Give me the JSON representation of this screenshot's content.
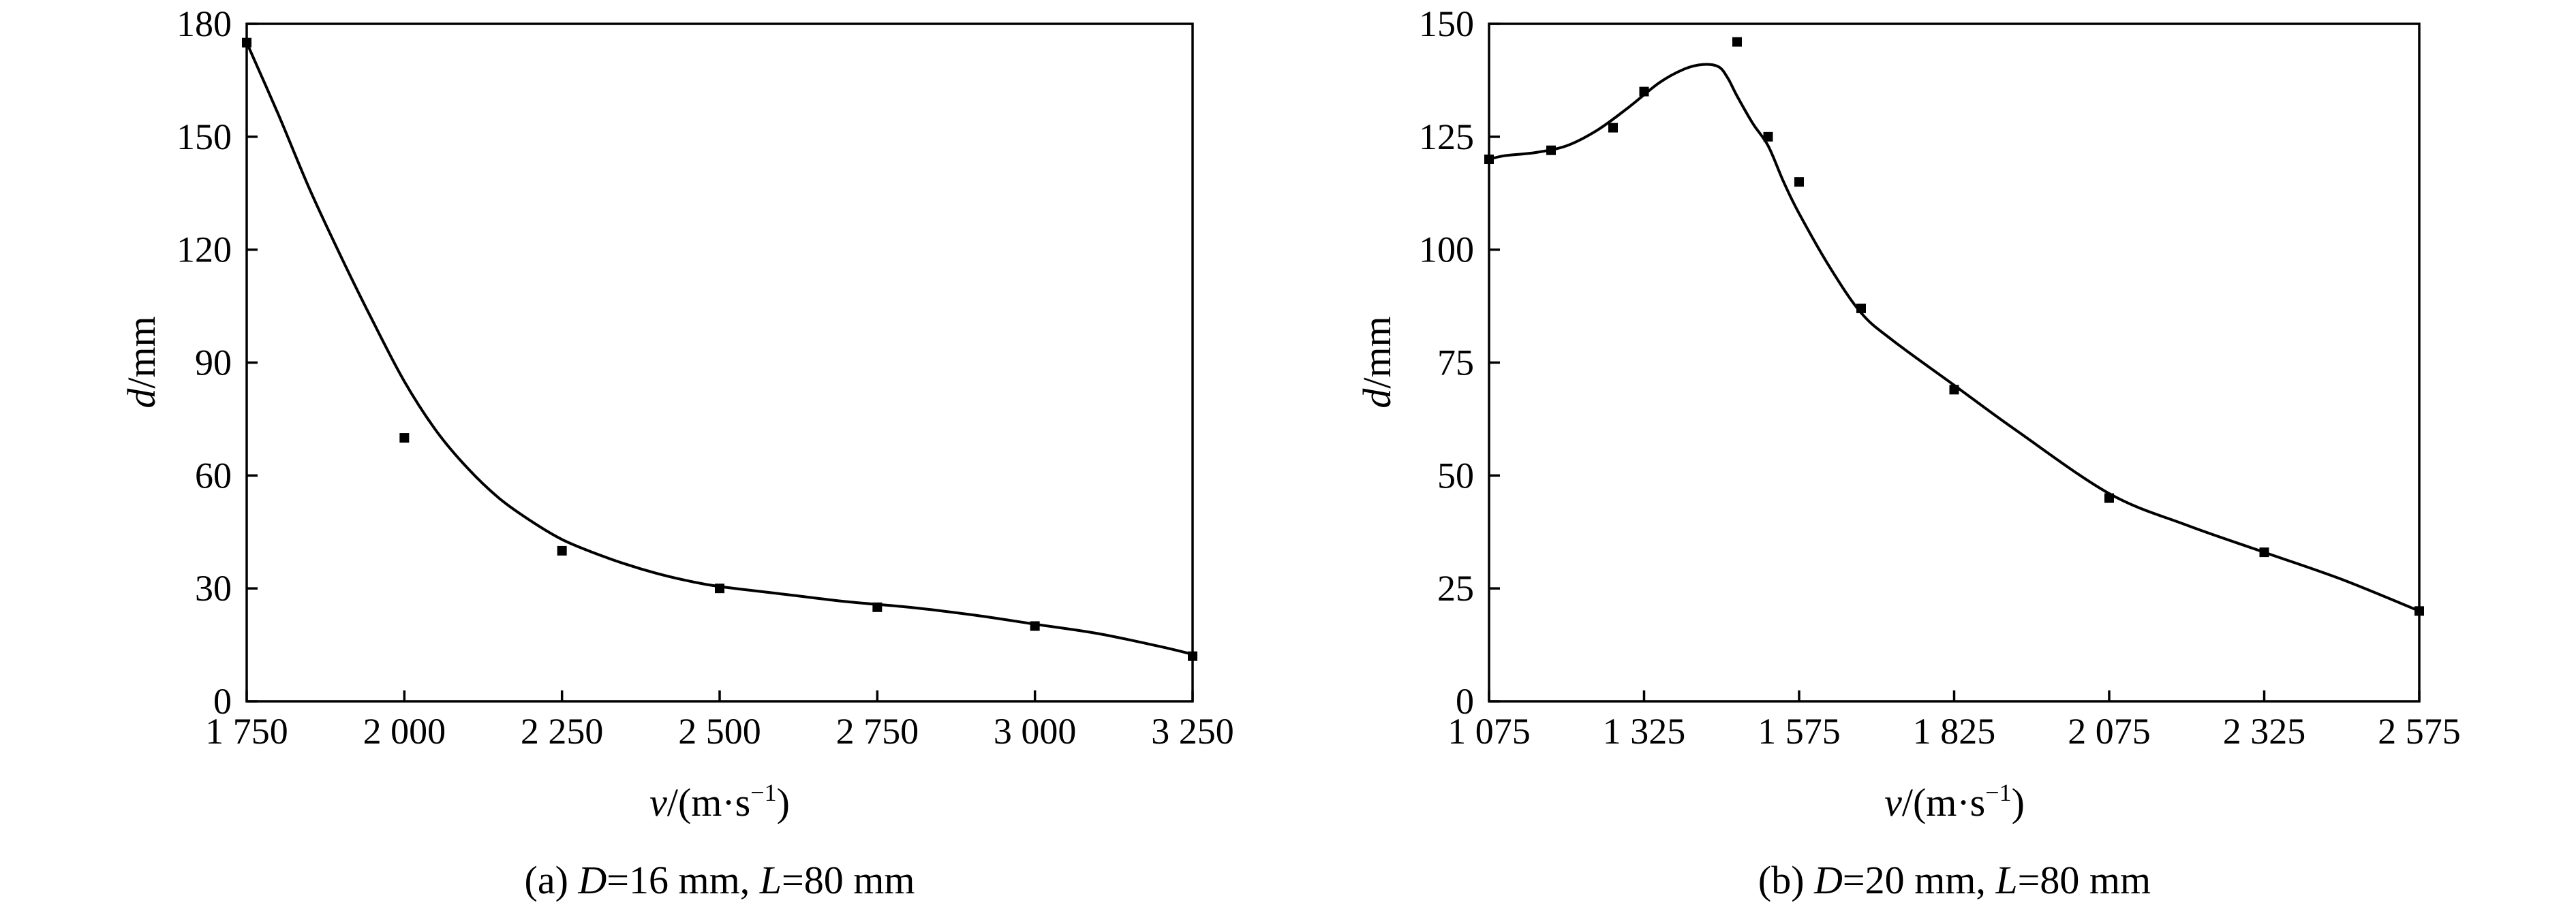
{
  "chart_data": [
    {
      "type": "scatter",
      "caption": {
        "prefix": "(a) ",
        "v1": "D",
        "t1": "=16 mm, ",
        "v2": "L",
        "t2": "=80 mm"
      },
      "xlabel": {
        "var": "v",
        "unit": "/(m·s",
        "sup": "−1",
        "close": ")"
      },
      "ylabel": {
        "var": "d",
        "unit": "/mm"
      },
      "xlim": [
        1750,
        3250
      ],
      "ylim": [
        0,
        180
      ],
      "xticks": [
        1750,
        2000,
        2250,
        2500,
        2750,
        3000,
        3250
      ],
      "xtick_labels": [
        "1 750",
        "2 000",
        "2 250",
        "2 500",
        "2 750",
        "3 000",
        "3 250"
      ],
      "yticks": [
        0,
        30,
        60,
        90,
        120,
        150,
        180
      ],
      "ytick_labels": [
        "0",
        "30",
        "60",
        "90",
        "120",
        "150",
        "180"
      ],
      "points": {
        "x": [
          1750,
          2000,
          2250,
          2500,
          2750,
          3000,
          3250
        ],
        "y": [
          175,
          70,
          40,
          30,
          25,
          20,
          12
        ]
      },
      "fit_curve": {
        "x": [
          1750,
          1800,
          1850,
          1900,
          1950,
          2000,
          2050,
          2100,
          2150,
          2200,
          2250,
          2300,
          2350,
          2400,
          2450,
          2500,
          2600,
          2700,
          2800,
          2900,
          3000,
          3100,
          3200,
          3250
        ],
        "y": [
          175,
          156,
          136,
          118,
          101,
          85,
          72,
          62,
          54,
          48,
          43,
          39.5,
          36.5,
          34,
          32,
          30.5,
          28.5,
          26.5,
          25,
          23,
          20.5,
          18,
          14.5,
          12.5
        ]
      }
    },
    {
      "type": "scatter",
      "caption": {
        "prefix": "(b) ",
        "v1": "D",
        "t1": "=20 mm, ",
        "v2": "L",
        "t2": "=80 mm"
      },
      "xlabel": {
        "var": "v",
        "unit": "/(m·s",
        "sup": "−1",
        "close": ")"
      },
      "ylabel": {
        "var": "d",
        "unit": "/mm"
      },
      "xlim": [
        1075,
        2575
      ],
      "ylim": [
        0,
        150
      ],
      "xticks": [
        1075,
        1325,
        1575,
        1825,
        2075,
        2325,
        2575
      ],
      "xtick_labels": [
        "1 075",
        "1 325",
        "1 575",
        "1 825",
        "2 075",
        "2 325",
        "2 575"
      ],
      "yticks": [
        0,
        25,
        50,
        75,
        100,
        125,
        150
      ],
      "ytick_labels": [
        "0",
        "25",
        "50",
        "75",
        "100",
        "125",
        "150"
      ],
      "points": {
        "x": [
          1075,
          1175,
          1275,
          1325,
          1475,
          1525,
          1575,
          1675,
          1825,
          2075,
          2325,
          2575
        ],
        "y": [
          120,
          122,
          127,
          135,
          146,
          125,
          115,
          87,
          69,
          45,
          33,
          20
        ]
      },
      "fit_curve": {
        "x": [
          1075,
          1100,
          1150,
          1200,
          1250,
          1300,
          1350,
          1390,
          1420,
          1445,
          1460,
          1475,
          1500,
          1525,
          1550,
          1575,
          1625,
          1675,
          1725,
          1825,
          1925,
          2075,
          2200,
          2325,
          2450,
          2575
        ],
        "y": [
          120,
          120.8,
          121.5,
          123,
          126.5,
          131.5,
          137,
          140,
          141,
          140.5,
          138,
          134,
          128,
          123,
          115,
          108,
          96,
          86,
          80,
          70,
          60,
          46,
          39,
          33,
          27,
          20
        ]
      }
    }
  ]
}
